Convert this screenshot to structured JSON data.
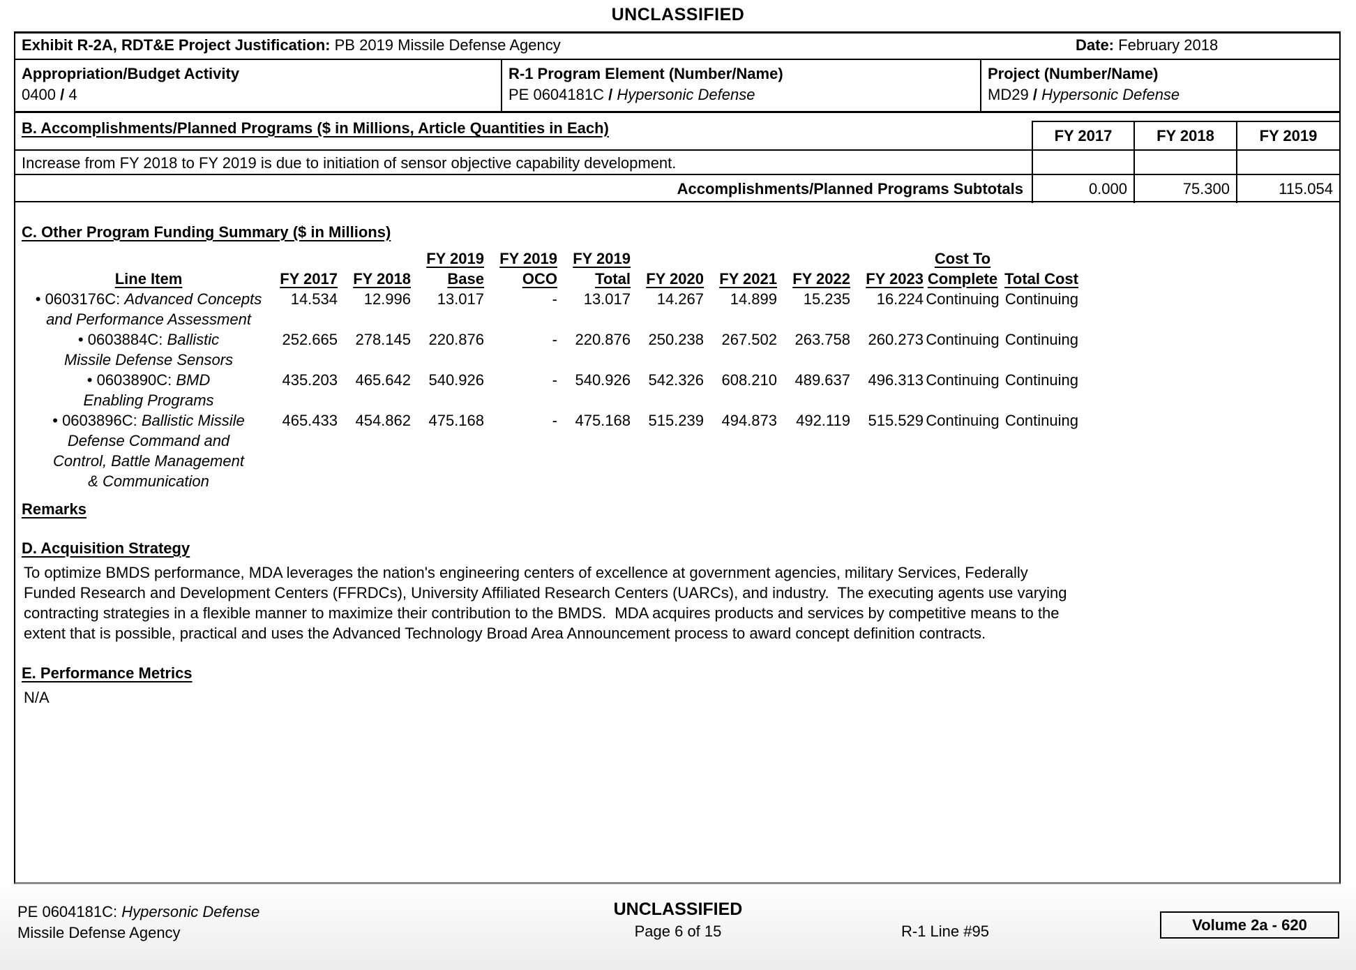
{
  "classification": "UNCLASSIFIED",
  "header": {
    "exhibit_label": "Exhibit R-2A, RDT&E Project Justification:",
    "exhibit_value": "PB 2019 Missile Defense Agency",
    "date_label": "Date:",
    "date_value": "February 2018",
    "appropriation_label": "Appropriation/Budget Activity",
    "appropriation_code": "0400",
    "sep": "/",
    "appropriation_num": "4",
    "r1_label": "R-1 Program Element (Number/Name)",
    "r1_code": "PE 0604181C",
    "r1_name": "Hypersonic Defense",
    "project_label": "Project (Number/Name)",
    "project_code": "MD29",
    "project_name": "Hypersonic Defense"
  },
  "section_b": {
    "title": "B. Accomplishments/Planned Programs ($ in Millions, Article Quantities in Each)",
    "years": [
      "FY 2017",
      "FY 2018",
      "FY 2019"
    ],
    "note": "Increase from FY 2018 to FY 2019 is due to initiation of sensor objective capability development.",
    "subtotals_label": "Accomplishments/Planned Programs Subtotals",
    "subtotals": [
      "0.000",
      "75.300",
      "115.054"
    ]
  },
  "section_c": {
    "title": "C. Other Program Funding Summary ($ in Millions)",
    "bullet": "•",
    "head_top": {
      "fy2019_base": "FY 2019",
      "fy2019_oco": "FY 2019",
      "fy2019_total": "FY 2019",
      "cost_to": "Cost To"
    },
    "head": {
      "line_item": "Line Item",
      "fy2017": "FY 2017",
      "fy2018": "FY 2018",
      "base": "Base",
      "oco": "OCO",
      "total": "Total",
      "fy2020": "FY 2020",
      "fy2021": "FY 2021",
      "fy2022": "FY 2022",
      "fy2023": "FY 2023",
      "complete": "Complete",
      "total_cost": "Total Cost"
    },
    "rows": [
      {
        "code": "0603176C:",
        "name_lines": [
          "Advanced Concepts",
          "and Performance Assessment"
        ],
        "values": [
          "14.534",
          "12.996",
          "13.017",
          "-",
          "13.017",
          "14.267",
          "14.899",
          "15.235",
          "16.224",
          "Continuing",
          "Continuing"
        ]
      },
      {
        "code": "0603884C:",
        "name_lines": [
          "Ballistic",
          "Missile Defense Sensors"
        ],
        "values": [
          "252.665",
          "278.145",
          "220.876",
          "-",
          "220.876",
          "250.238",
          "267.502",
          "263.758",
          "260.273",
          "Continuing",
          "Continuing"
        ]
      },
      {
        "code": "0603890C:",
        "name_lines": [
          "BMD",
          "Enabling Programs"
        ],
        "values": [
          "435.203",
          "465.642",
          "540.926",
          "-",
          "540.926",
          "542.326",
          "608.210",
          "489.637",
          "496.313",
          "Continuing",
          "Continuing"
        ]
      },
      {
        "code": "0603896C:",
        "name_lines": [
          "Ballistic Missile",
          "Defense Command and",
          "Control, Battle Management",
          "& Communication"
        ],
        "values": [
          "465.433",
          "454.862",
          "475.168",
          "-",
          "475.168",
          "515.239",
          "494.873",
          "492.119",
          "515.529",
          "Continuing",
          "Continuing"
        ]
      }
    ]
  },
  "remarks_label": "Remarks",
  "section_d": {
    "title": "D. Acquisition Strategy",
    "text": "To optimize BMDS performance, MDA leverages the nation's engineering centers of excellence at government agencies, military Services, Federally Funded Research and Development Centers (FFRDCs), University Affiliated Research Centers (UARCs), and industry.  The executing agents use varying contracting strategies in a flexible manner to maximize their contribution to the BMDS.  MDA acquires products and services by competitive means to the extent that is possible, practical and uses the Advanced Technology Broad Area Announcement process to award concept definition contracts."
  },
  "section_e": {
    "title": "E. Performance Metrics",
    "value": "N/A"
  },
  "footer": {
    "pe_code": "PE 0604181C:",
    "pe_name": "Hypersonic Defense",
    "agency": "Missile Defense Agency",
    "classification": "UNCLASSIFIED",
    "page": "Page 6 of 15",
    "r1_line": "R-1 Line #95",
    "volume": "Volume 2a - 620"
  }
}
